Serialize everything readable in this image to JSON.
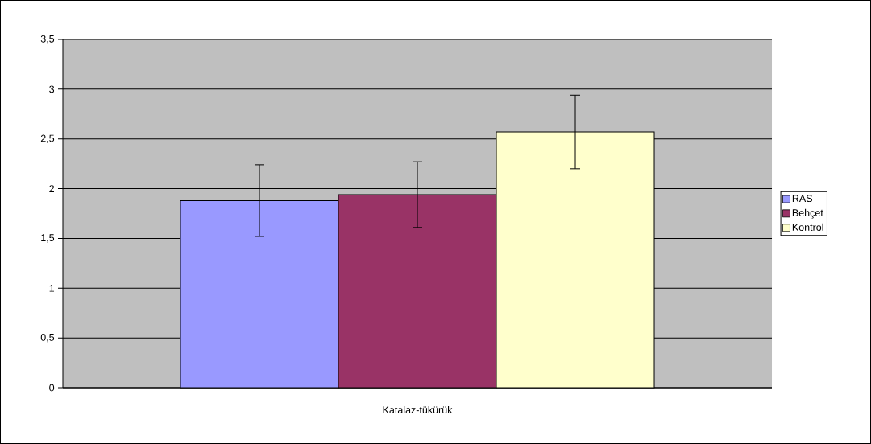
{
  "chart_data": {
    "type": "bar",
    "xlabel": "Katalaz-tükürük",
    "categories": [
      null
    ],
    "series": [
      {
        "name": "RAS",
        "color": "#9999ff",
        "values": [
          1.88
        ],
        "errors": [
          0.36
        ]
      },
      {
        "name": "Behçet",
        "color": "#993366",
        "values": [
          1.94
        ],
        "errors": [
          0.33
        ]
      },
      {
        "name": "Kontrol",
        "color": "#ffffcc",
        "values": [
          2.57
        ],
        "errors": [
          0.37
        ]
      }
    ],
    "ylim": [
      0,
      3.5
    ],
    "yticks": [
      0,
      {
        "value": 0.5,
        "label": "0,5"
      },
      1,
      {
        "value": 1.5,
        "label": "1,5"
      },
      2,
      {
        "value": 2.5,
        "label": "2,5"
      },
      3,
      {
        "value": 3.5,
        "label": "3,5"
      }
    ],
    "grid": "y",
    "legend": "right"
  }
}
